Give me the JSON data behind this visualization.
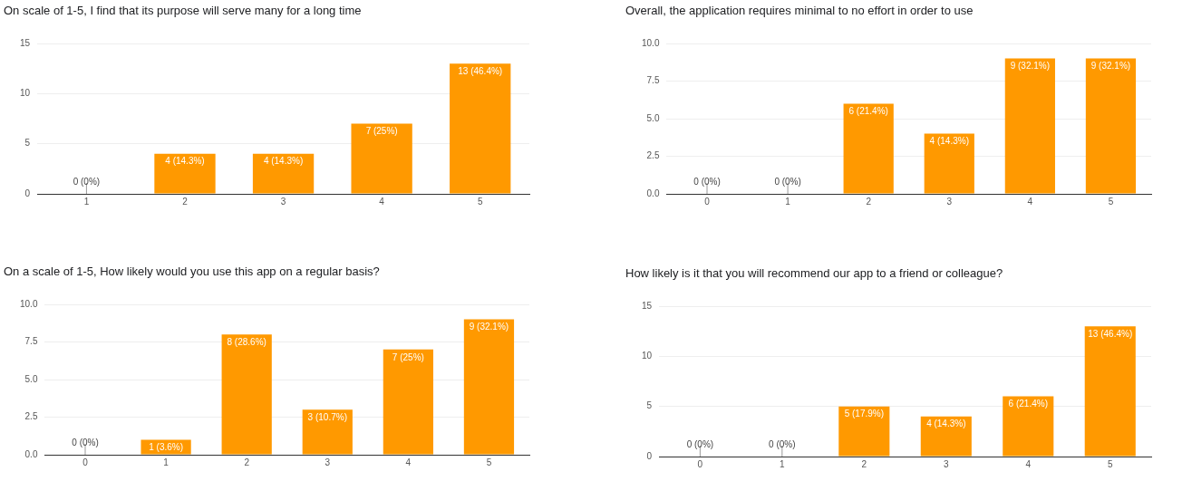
{
  "chart_data": [
    {
      "type": "bar",
      "title": "On scale of 1-5, I find that its purpose will serve many for a long time",
      "categories": [
        "1",
        "2",
        "3",
        "4",
        "5"
      ],
      "values": [
        0,
        4,
        4,
        7,
        13
      ],
      "value_labels": [
        "0 (0%)",
        "4 (14.3%)",
        "4 (14.3%)",
        "7 (25%)",
        "13 (46.4%)"
      ],
      "color": "#ff9900",
      "ylim": [
        0,
        15
      ],
      "yticks": [
        0,
        5,
        10,
        15
      ],
      "grid": "y"
    },
    {
      "type": "bar",
      "title": "Overall, the application requires minimal to no effort in order to use",
      "categories": [
        "0",
        "1",
        "2",
        "3",
        "4",
        "5"
      ],
      "values": [
        0,
        0,
        6,
        4,
        9,
        9
      ],
      "value_labels": [
        "0 (0%)",
        "0 (0%)",
        "6 (21.4%)",
        "4 (14.3%)",
        "9 (32.1%)",
        "9 (32.1%)"
      ],
      "color": "#ff9900",
      "ylim": [
        0,
        10
      ],
      "yticks": [
        {
          "value": 0,
          "label": "0.0"
        },
        {
          "value": 2.5,
          "label": "2.5"
        },
        {
          "value": 5,
          "label": "5.0"
        },
        {
          "value": 7.5,
          "label": "7.5"
        },
        {
          "value": 10,
          "label": "10.0"
        }
      ],
      "grid": "y"
    },
    {
      "type": "bar",
      "title": "On a scale of 1-5, How likely would you use this app on a regular basis?",
      "categories": [
        "0",
        "1",
        "2",
        "3",
        "4",
        "5"
      ],
      "values": [
        0,
        1,
        8,
        3,
        7,
        9
      ],
      "value_labels": [
        "0 (0%)",
        "1 (3.6%)",
        "8 (28.6%)",
        "3 (10.7%)",
        "7 (25%)",
        "9 (32.1%)"
      ],
      "color": "#ff9900",
      "ylim": [
        0,
        10
      ],
      "yticks": [
        {
          "value": 0,
          "label": "0.0"
        },
        {
          "value": 2.5,
          "label": "2.5"
        },
        {
          "value": 5,
          "label": "5.0"
        },
        {
          "value": 7.5,
          "label": "7.5"
        },
        {
          "value": 10,
          "label": "10.0"
        }
      ],
      "grid": "y"
    },
    {
      "type": "bar",
      "title": "How likely is it that you will recommend our app to a friend or colleague?",
      "categories": [
        "0",
        "1",
        "2",
        "3",
        "4",
        "5"
      ],
      "values": [
        0,
        0,
        5,
        4,
        6,
        13
      ],
      "value_labels": [
        "0 (0%)",
        "0 (0%)",
        "5 (17.9%)",
        "4 (14.3%)",
        "6 (21.4%)",
        "13 (46.4%)"
      ],
      "color": "#ff9900",
      "ylim": [
        0,
        15
      ],
      "yticks": [
        0,
        5,
        10,
        15
      ],
      "grid": "y"
    }
  ]
}
